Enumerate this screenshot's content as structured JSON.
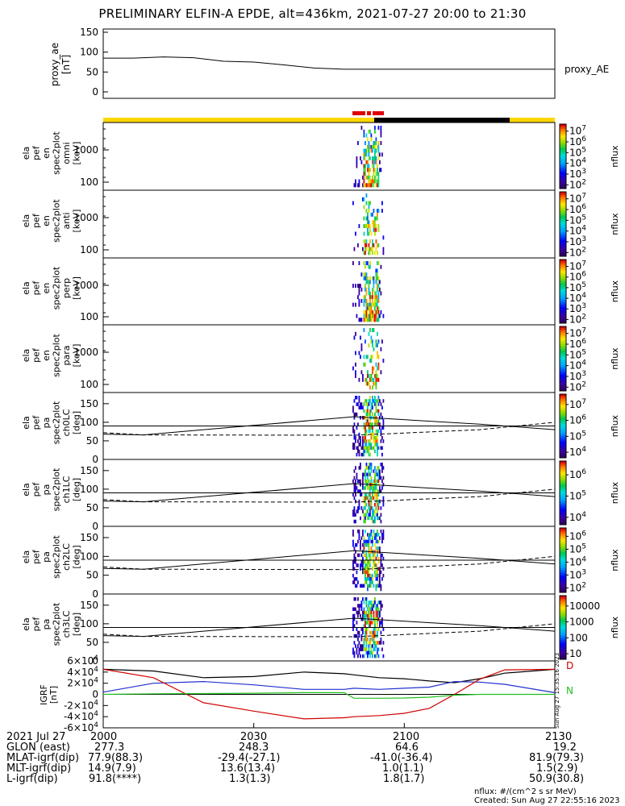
{
  "title": "PRELIMINARY ELFIN-A EPDE, alt=436km, 2021-07-27 20:00 to 21:30",
  "colors": {
    "bar_yellow": "#ffd700",
    "bar_black": "#000000",
    "bar_red": "#e00000",
    "trace_black": "#000000",
    "trace_blue": "#2030d0",
    "trace_red": "#d00000",
    "trace_green": "#20c020"
  },
  "chart_data": [
    {
      "type": "line",
      "panel": "proxy_ae",
      "ylabel_lines": [
        "proxy_ae",
        "[nT]"
      ],
      "legend": "proxy_AE",
      "ylim": [
        0,
        150
      ],
      "yticks": [
        "0",
        "50",
        "100",
        "150"
      ],
      "x_minutes": [
        0,
        6,
        12,
        18,
        24,
        30,
        36,
        42,
        48,
        90
      ],
      "values": [
        85,
        85,
        88,
        86,
        77,
        75,
        68,
        60,
        57,
        57
      ]
    },
    {
      "type": "heatmap",
      "panel": "energy omni",
      "ylabel_lines": [
        "ela",
        "pef",
        "en",
        "spec2plot",
        "omni",
        "[keV]"
      ],
      "yscale": "log",
      "yticks": [
        "100",
        "1000"
      ],
      "colorbar_ticks": [
        "10^2",
        "10^3",
        "10^4",
        "10^5",
        "10^6",
        "10^7"
      ],
      "colorbar_label": "nflux"
    },
    {
      "type": "heatmap",
      "panel": "energy anti",
      "ylabel_lines": [
        "ela",
        "pef",
        "en",
        "spec2plot",
        "anti",
        "[keV]"
      ],
      "yscale": "log",
      "yticks": [
        "100",
        "1000"
      ],
      "colorbar_ticks": [
        "10^2",
        "10^3",
        "10^4",
        "10^5",
        "10^6",
        "10^7"
      ],
      "colorbar_label": "nflux"
    },
    {
      "type": "heatmap",
      "panel": "energy perp",
      "ylabel_lines": [
        "ela",
        "pef",
        "en",
        "spec2plot",
        "perp",
        "[keV]"
      ],
      "yscale": "log",
      "yticks": [
        "100",
        "1000"
      ],
      "colorbar_ticks": [
        "10^2",
        "10^3",
        "10^4",
        "10^5",
        "10^6",
        "10^7"
      ],
      "colorbar_label": "nflux"
    },
    {
      "type": "heatmap",
      "panel": "energy para",
      "ylabel_lines": [
        "ela",
        "pef",
        "en",
        "spec2plot",
        "para",
        "[keV]"
      ],
      "yscale": "log",
      "yticks": [
        "100",
        "1000"
      ],
      "colorbar_ticks": [
        "10^2",
        "10^3",
        "10^4",
        "10^5",
        "10^6",
        "10^7"
      ],
      "colorbar_label": "nflux"
    },
    {
      "type": "heatmap",
      "panel": "pitch angle ch0",
      "ylabel_lines": [
        "ela",
        "pef",
        "pa",
        "spec2plot",
        "ch0LC",
        "[deg]"
      ],
      "ylim": [
        0,
        180
      ],
      "yticks": [
        "0",
        "50",
        "100",
        "150"
      ],
      "colorbar_ticks": [
        "10^4",
        "10^5",
        "10^6",
        "10^7"
      ],
      "colorbar_label": "nflux"
    },
    {
      "type": "heatmap",
      "panel": "pitch angle ch1",
      "ylabel_lines": [
        "ela",
        "pef",
        "pa",
        "spec2plot",
        "ch1LC",
        "[deg]"
      ],
      "ylim": [
        0,
        180
      ],
      "yticks": [
        "0",
        "50",
        "100",
        "150"
      ],
      "colorbar_ticks": [
        "10^4",
        "10^5",
        "10^6"
      ],
      "colorbar_label": "nflux"
    },
    {
      "type": "heatmap",
      "panel": "pitch angle ch2",
      "ylabel_lines": [
        "ela",
        "pef",
        "pa",
        "spec2plot",
        "ch2LC",
        "[deg]"
      ],
      "ylim": [
        0,
        180
      ],
      "yticks": [
        "0",
        "50",
        "100",
        "150"
      ],
      "colorbar_ticks": [
        "10^2",
        "10^3",
        "10^4",
        "10^5",
        "10^6"
      ],
      "colorbar_label": "nflux"
    },
    {
      "type": "heatmap",
      "panel": "pitch angle ch3",
      "ylabel_lines": [
        "ela",
        "pef",
        "pa",
        "spec2plot",
        "ch3LC",
        "[deg]"
      ],
      "ylim": [
        0,
        180
      ],
      "yticks": [
        "0",
        "50",
        "100",
        "150"
      ],
      "colorbar_ticks": [
        "10",
        "100",
        "1000",
        "10000"
      ],
      "colorbar_label": "nflux"
    },
    {
      "type": "line",
      "panel": "field",
      "ylabel_lines": [
        "IGRF",
        "[nT]"
      ],
      "ylim": [
        -60000,
        60000
      ],
      "yticks": [
        "-6x10^4",
        "-4x10^4",
        "-2x10^4",
        "0",
        "2x10^4",
        "4x10^4",
        "6x10^4"
      ],
      "legend": [
        "D",
        "N"
      ],
      "x_minutes": [
        0,
        10,
        20,
        30,
        40,
        48,
        50,
        55,
        60,
        65,
        70,
        75,
        80,
        90
      ],
      "series": [
        {
          "color_key": "trace_black",
          "values": [
            45000,
            42000,
            30000,
            32000,
            40000,
            37000,
            35000,
            30000,
            28000,
            24000,
            21000,
            28000,
            38000,
            45000
          ]
        },
        {
          "color_key": "trace_blue",
          "values": [
            4000,
            20000,
            23000,
            17000,
            9000,
            9000,
            11000,
            9000,
            11000,
            13000,
            23000,
            22000,
            18000,
            3000
          ]
        },
        {
          "color_key": "trace_red",
          "values": [
            45000,
            30000,
            -15000,
            -30000,
            -44000,
            -42000,
            -40000,
            -38000,
            -34000,
            -25000,
            0,
            27000,
            44000,
            45000
          ]
        },
        {
          "color_key": "trace_green",
          "values": [
            0,
            1000,
            1500,
            2000,
            3000,
            3000,
            -7000,
            -7000,
            -6500,
            -5000,
            -1500,
            0,
            0,
            0
          ]
        }
      ]
    }
  ],
  "side_stamp": "Sun Aug 27 15:35:16 2023",
  "footer": {
    "rows": [
      [
        "2021 Jul 27",
        "2000",
        "2030",
        "2100",
        "2130"
      ],
      [
        "GLON (east)",
        "277.3",
        "248.3",
        "64.6",
        "19.2"
      ],
      [
        "MLAT-igrf(dip)",
        "77.9(88.3)",
        "-29.4(-27.1)",
        "-41.0(-36.4)",
        "81.9(79.3)"
      ],
      [
        "MLT-igrf(dip)",
        "14.9(7.9)",
        "13.6(13.4)",
        "1.0(1.1)",
        "1.5(2.9)"
      ],
      [
        "L-igrf(dip)",
        "91.8(****)",
        "1.3(1.3)",
        "1.8(1.7)",
        "50.9(30.8)"
      ]
    ],
    "note_units": "nflux: #/(cm^2 s sr MeV)",
    "note_created": "Created: Sun Aug 27 22:55:16 2023"
  }
}
